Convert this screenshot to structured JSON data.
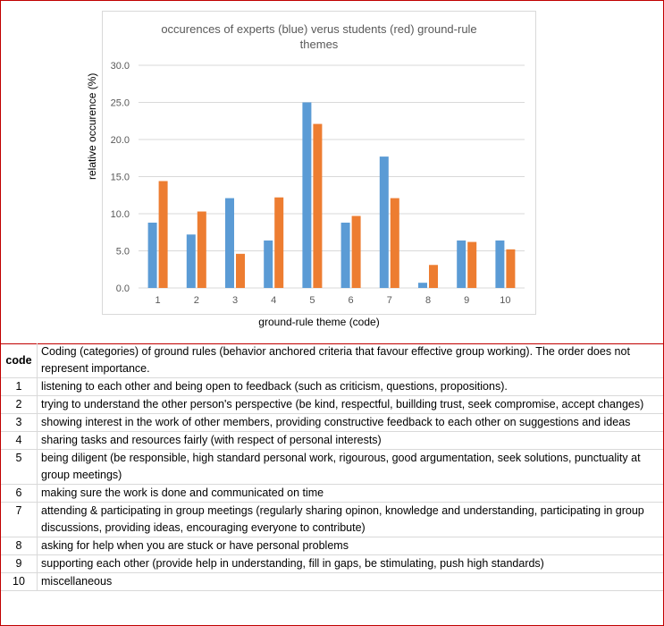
{
  "chart_data": {
    "type": "bar",
    "title_line1": "occurences of experts (blue) verus students (red) ground-rule",
    "title_line2": "themes",
    "xlabel": "ground-rule theme (code)",
    "ylabel": "relative occurence (%)",
    "ylim": [
      0,
      30
    ],
    "yticks": [
      "0.0",
      "5.0",
      "10.0",
      "15.0",
      "20.0",
      "25.0",
      "30.0"
    ],
    "categories": [
      "1",
      "2",
      "3",
      "4",
      "5",
      "6",
      "7",
      "8",
      "9",
      "10"
    ],
    "series": [
      {
        "name": "experts",
        "color": "#5b9bd5",
        "values": [
          8.8,
          7.2,
          12.1,
          6.4,
          25.0,
          8.8,
          17.7,
          0.7,
          6.4,
          6.4
        ]
      },
      {
        "name": "students",
        "color": "#ed7d31",
        "values": [
          14.4,
          10.3,
          4.6,
          12.2,
          22.1,
          9.7,
          12.1,
          3.1,
          6.2,
          5.2
        ]
      }
    ],
    "grid": true
  },
  "table": {
    "header_code": "code",
    "header_desc": "Coding (categories) of ground rules (behavior anchored criteria that favour effective group working). The order does not represent importance.",
    "rows": [
      {
        "code": "1",
        "desc": "listening to each other and being open to feedback (such as criticism, questions, propositions)."
      },
      {
        "code": "2",
        "desc": "trying to understand the other person's perspective (be kind, respectful, buillding trust, seek compromise, accept changes)"
      },
      {
        "code": "3",
        "desc": "showing interest in the work of other members, providing constructive feedback to each other on suggestions and ideas"
      },
      {
        "code": "4",
        "desc": "sharing tasks and resources fairly (with respect of personal interests)"
      },
      {
        "code": "5",
        "desc": "being diligent (be responsible, high standard personal work, rigourous, good argumentation, seek solutions, punctuality at group meetings)"
      },
      {
        "code": "6",
        "desc": "making sure the work is done and communicated on time"
      },
      {
        "code": "7",
        "desc": "attending & participating in group meetings (regularly sharing opinon, knowledge and understanding, participating in group discussions, providing ideas, encouraging everyone to contribute)"
      },
      {
        "code": "8",
        "desc": "asking for help when you are stuck or have personal problems"
      },
      {
        "code": "9",
        "desc": "supporting each other (provide help in understanding, fill in gaps, be stimulating, push high standards)"
      },
      {
        "code": "10",
        "desc": "miscellaneous"
      }
    ]
  }
}
